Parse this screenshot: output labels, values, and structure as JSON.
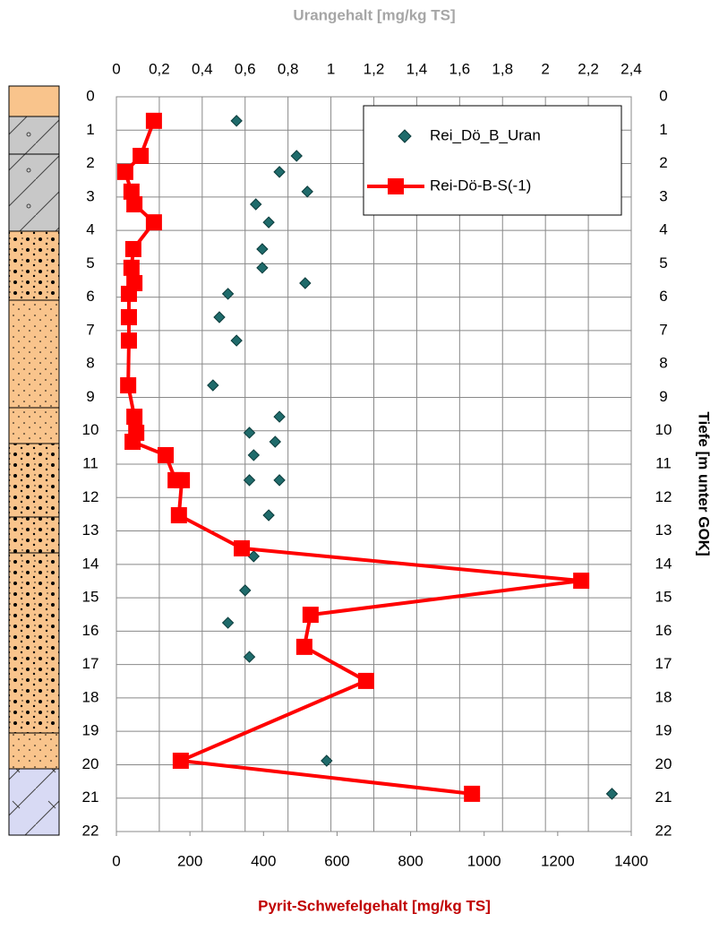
{
  "chart_data": {
    "type": "depth-profile",
    "x2label": "Urangehalt [mg/kg TS]",
    "xlabel": "Pyrit-Schwefelgehalt [mg/kg TS]",
    "ylabel": "Tiefe [m unter GOK]",
    "xlim": [
      0,
      1400
    ],
    "xticks": [
      0,
      200,
      400,
      600,
      800,
      1000,
      1200,
      1400
    ],
    "x2lim": [
      0,
      2.4
    ],
    "x2ticks": [
      0,
      {
        "value": 0.2,
        "label": "0,2"
      },
      {
        "value": 0.4,
        "label": "0,4"
      },
      {
        "value": 0.6,
        "label": "0,6"
      },
      {
        "value": 0.8,
        "label": "0,8"
      },
      1,
      {
        "value": 1.2,
        "label": "1,2"
      },
      {
        "value": 1.4,
        "label": "1,4"
      },
      {
        "value": 1.6,
        "label": "1,6"
      },
      {
        "value": 1.8,
        "label": "1,8"
      },
      2,
      {
        "value": 2.2,
        "label": "2,2"
      },
      {
        "value": 2.4,
        "label": "2,4"
      }
    ],
    "ylim": [
      0,
      22
    ],
    "yticks": [
      0,
      1,
      2,
      3,
      4,
      5,
      6,
      7,
      8,
      9,
      10,
      11,
      12,
      13,
      14,
      15,
      16,
      17,
      18,
      19,
      20,
      21,
      22
    ],
    "grid": true,
    "legend": "upper right",
    "series": [
      {
        "name": "Rei_Dö_B_Uran",
        "color": "#1f6b6b",
        "marker": "diamond",
        "axis": "x2",
        "x": [
          0.56,
          0.84,
          0.76,
          0.89,
          0.65,
          0.71,
          0.68,
          0.68,
          0.88,
          0.52,
          0.48,
          0.56,
          0.45,
          0.76,
          0.62,
          0.74,
          0.64,
          0.62,
          0.76,
          0.71,
          0.64,
          0.6,
          0.52,
          0.62,
          0.98,
          2.31
        ],
        "y": [
          0.72,
          1.77,
          2.25,
          2.84,
          3.22,
          3.76,
          4.56,
          5.12,
          5.58,
          5.9,
          6.6,
          7.3,
          8.64,
          9.58,
          10.06,
          10.33,
          10.73,
          11.48,
          11.48,
          12.53,
          13.76,
          14.78,
          15.75,
          16.77,
          19.88,
          20.87
        ]
      },
      {
        "name": "Rei-Dö-B-S(-1)",
        "color": "#ff0000",
        "marker": "square",
        "axis": "x",
        "x": [
          102,
          66,
          24,
          41,
          49,
          102,
          46,
          41,
          49,
          34,
          34,
          34,
          32,
          49,
          54,
          44,
          134,
          161,
          178,
          170,
          341,
          1264,
          528,
          511,
          679,
          175,
          967
        ],
        "y": [
          0.72,
          1.77,
          2.25,
          2.84,
          3.22,
          3.76,
          4.56,
          5.12,
          5.58,
          5.9,
          6.6,
          7.3,
          8.64,
          9.58,
          10.06,
          10.33,
          10.73,
          11.48,
          11.48,
          12.53,
          13.52,
          14.49,
          15.51,
          16.47,
          17.49,
          19.88,
          20.87
        ]
      }
    ]
  }
}
